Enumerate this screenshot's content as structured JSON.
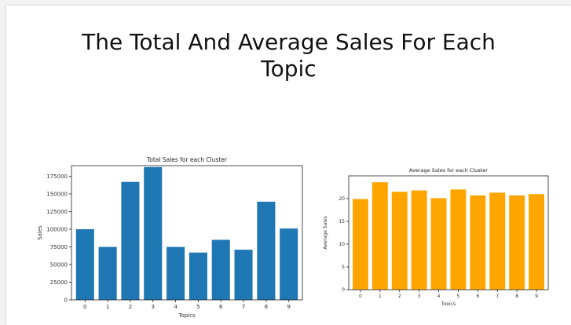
{
  "slide": {
    "title": "The Total And Average Sales For Each\nTopic"
  },
  "chart_data": [
    {
      "type": "bar",
      "title": "Total Sales for each Cluster",
      "xlabel": "Topics",
      "ylabel": "Sales",
      "categories": [
        "0",
        "1",
        "2",
        "3",
        "4",
        "5",
        "6",
        "7",
        "8",
        "9"
      ],
      "values": [
        100000,
        75000,
        167000,
        188000,
        75000,
        67000,
        85000,
        71000,
        139000,
        101000
      ],
      "ylim": [
        0,
        190000
      ],
      "yticks": [
        0,
        25000,
        50000,
        75000,
        100000,
        125000,
        150000,
        175000
      ],
      "color": "#1f77b4",
      "grid": false
    },
    {
      "type": "bar",
      "title": "Average Sales for each Cluster",
      "xlabel": "Topics",
      "ylabel": "Average Sales",
      "categories": [
        "0",
        "1",
        "2",
        "3",
        "4",
        "5",
        "6",
        "7",
        "8",
        "9"
      ],
      "values": [
        19.9,
        23.6,
        21.5,
        21.8,
        20.1,
        22.0,
        20.7,
        21.3,
        20.7,
        21.0
      ],
      "ylim": [
        0,
        25
      ],
      "yticks": [
        0,
        5,
        10,
        15,
        20
      ],
      "color": "#ffa500",
      "grid": false
    }
  ]
}
